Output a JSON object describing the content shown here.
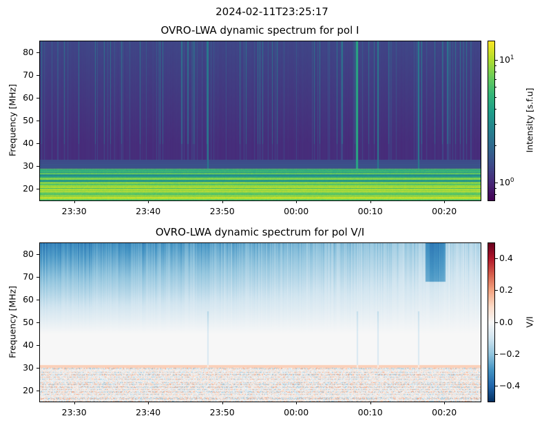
{
  "suptitle": "2024-02-11T23:25:17",
  "chart_data": [
    {
      "type": "heatmap",
      "title": "OVRO-LWA dynamic spectrum for pol I",
      "xlabel": "",
      "ylabel": "Frequency [MHz]",
      "x_range": [
        "23:25:17",
        "00:24:55"
      ],
      "ylim": [
        15,
        85
      ],
      "xticks": [
        "23:30",
        "23:40",
        "23:50",
        "00:00",
        "00:10",
        "00:20"
      ],
      "xtick_minutes": [
        30,
        40,
        50,
        60,
        70,
        80
      ],
      "yticks": [
        "20",
        "30",
        "40",
        "50",
        "60",
        "70",
        "80"
      ],
      "ytick_values": [
        20,
        30,
        40,
        50,
        60,
        70,
        80
      ],
      "colormap": "viridis",
      "color_scale": "log",
      "clim": [
        0.71,
        14.4
      ],
      "colorbar_label": "Intensity [s.f.u]",
      "colorbar_ticks": [
        {
          "label": "10",
          "exp": "1",
          "value": 10
        },
        {
          "label": "10",
          "exp": "0",
          "value": 1
        }
      ],
      "features": {
        "bright_bands_below_mhz": 29,
        "vertical_bursts_minutes": [
          48,
          68.2,
          71,
          76.5
        ]
      }
    },
    {
      "type": "heatmap",
      "title": "OVRO-LWA dynamic spectrum for pol V/I",
      "xlabel": "",
      "ylabel": "Frequency [MHz]",
      "x_range": [
        "23:25:17",
        "00:24:55"
      ],
      "ylim": [
        15,
        85
      ],
      "xticks": [
        "23:30",
        "23:40",
        "23:50",
        "00:00",
        "00:10",
        "00:20"
      ],
      "xtick_minutes": [
        30,
        40,
        50,
        60,
        70,
        80
      ],
      "yticks": [
        "20",
        "30",
        "40",
        "50",
        "60",
        "70",
        "80"
      ],
      "ytick_values": [
        20,
        30,
        40,
        50,
        60,
        70,
        80
      ],
      "colormap": "RdBu_r",
      "color_scale": "linear",
      "clim": [
        -0.5,
        0.5
      ],
      "colorbar_label": "V/I",
      "colorbar_ticks": [
        {
          "label": "0.4",
          "value": 0.4
        },
        {
          "label": "0.2",
          "value": 0.2
        },
        {
          "label": "0.0",
          "value": 0.0
        },
        {
          "label": "−0.2",
          "value": -0.2
        },
        {
          "label": "−0.4",
          "value": -0.4
        }
      ]
    }
  ]
}
